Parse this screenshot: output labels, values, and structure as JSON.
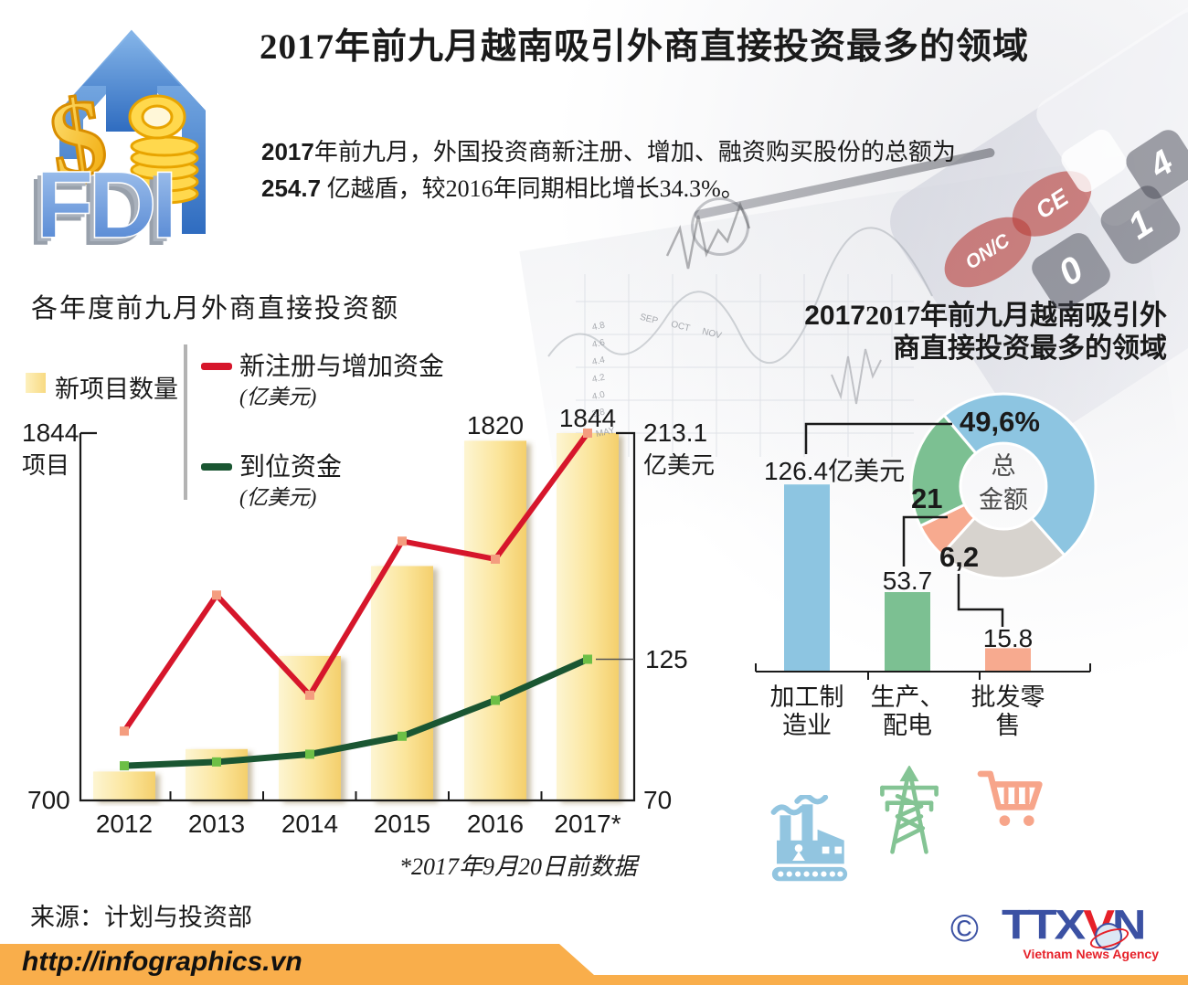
{
  "title": "2017年前九月越南吸引外商直接投资最多的领域",
  "intro": {
    "num1": "2017",
    "line1": "年前九月，外国投资商新注册、增加、融资购买股份的总额为",
    "num2": "254.7",
    "line2": " 亿越盾，较2016年同期相比增长34.3%。"
  },
  "logo": {
    "text": "FDI",
    "dollar": "$"
  },
  "left_chart": {
    "title": "各年度前九月外商直接投资额",
    "legend": {
      "bar": "新项目数量",
      "line1": "新注册与增加资金",
      "line1_unit": "(亿美元)",
      "line2": "到位资金",
      "line2_unit": "(亿美元)"
    },
    "axis_left": {
      "top": "1844",
      "top_unit": "项目",
      "bottom": "700"
    },
    "axis_right": {
      "top": "213.1",
      "top_unit": "亿美元",
      "mid": "125",
      "bottom": "70"
    },
    "bar_labels": [
      "1820",
      "1844"
    ],
    "footnote": "*2017年9月20日前数据"
  },
  "right_chart": {
    "title_line1": "2017年前九月越南吸引外",
    "title_line2": "商直接投资最多的领域",
    "title_bold_prefix": "2017",
    "donut_center_line1": "总",
    "donut_center_line2": "金额",
    "pct_labels": [
      "49,6%",
      "21",
      "6,2"
    ],
    "value_labels": [
      "126.4亿美元",
      "53.7",
      "15.8"
    ],
    "cat_lines": [
      [
        "加工制",
        "造业"
      ],
      [
        "生产、",
        "配电"
      ],
      [
        "批发零",
        "售"
      ]
    ]
  },
  "footer": {
    "source": "来源：计划与投资部",
    "url": "http://infographics.vn",
    "copyright": "©",
    "agency_t1": "TT",
    "agency_t2": "X",
    "agency_v": "V",
    "agency_n": "N",
    "agency_tagline": "Vietnam News Agency"
  },
  "background": {
    "calc_buttons": [
      "CE",
      "ON/C",
      "4",
      "1",
      "0"
    ],
    "months": [
      "SEP",
      "OCT",
      "NOV"
    ],
    "month_extra": "MAY",
    "axis_numbers": [
      "4.8",
      "4.6",
      "4.4",
      "4.2",
      "4.0",
      "3.8"
    ]
  },
  "colors": {
    "bar_yellow": "#f9dd85",
    "line_red": "#d6162b",
    "line_green": "#1a5632",
    "donut_blue": "#8dc5e1",
    "donut_green": "#7cc092",
    "donut_salmon": "#f7aa8f",
    "donut_gray": "#d7d3ce",
    "banner_orange": "#f9ae4b",
    "ttxvn_blue": "#3b51a3",
    "ttxvn_red": "#e62129"
  },
  "chart_data": [
    {
      "type": "bar",
      "subtype": "bar+line combo",
      "title": "各年度前九月外商直接投资额",
      "categories": [
        "2012",
        "2013",
        "2014",
        "2015",
        "2016",
        "2017*"
      ],
      "series": [
        {
          "name": "新项目数量 (项目)",
          "kind": "bar",
          "color": "#f9dd85",
          "values": [
            790,
            860,
            1150,
            1430,
            1820,
            1844
          ]
        },
        {
          "name": "新注册与增加资金 (亿美元)",
          "kind": "line",
          "color": "#d6162b",
          "marker_color": "#f49d7f",
          "values": [
            97,
            150,
            111,
            171,
            164,
            213.1
          ]
        },
        {
          "name": "到位资金 (亿美元)",
          "kind": "line",
          "color": "#1a5632",
          "marker_color": "#6dbf46",
          "values": [
            83.5,
            85,
            88,
            95,
            109,
            125
          ]
        }
      ],
      "y_left": {
        "label": "项目",
        "min": 700,
        "max": 1844
      },
      "y_right": {
        "label": "亿美元",
        "min": 70,
        "max": 213.1,
        "mid_tick": 125
      },
      "labeled_points": {
        "2016_bar": 1820,
        "2017_bar": 1844,
        "2017_line_red": 213.1,
        "2017_line_green": 125
      },
      "footnote": "*2017年9月20日前数据"
    },
    {
      "type": "pie",
      "subtype": "donut",
      "title": "2017年前九月越南吸引外商直接投资最多的领域",
      "center_label": "总金额",
      "start_angle_deg_from_north": -40,
      "segments": [
        {
          "label": "49,6%",
          "value": 49.6,
          "color": "#8dc5e1",
          "category": "加工制造业"
        },
        {
          "label": "",
          "value": 23.2,
          "color": "#d7d3ce",
          "category": ""
        },
        {
          "label": "6,2",
          "value": 6.2,
          "color": "#f7aa8f",
          "category": "批发零售"
        },
        {
          "label": "21",
          "value": 21,
          "color": "#7cc092",
          "category": "生产、配电"
        }
      ]
    },
    {
      "type": "bar",
      "unit": "亿美元",
      "categories": [
        "加工制造业",
        "生产、配电",
        "批发零售"
      ],
      "values": [
        126.4,
        53.7,
        15.8
      ],
      "value_labels": [
        "126.4亿美元",
        "53.7",
        "15.8"
      ],
      "colors": [
        "#8dc5e1",
        "#7cc092",
        "#f7aa8f"
      ]
    }
  ]
}
